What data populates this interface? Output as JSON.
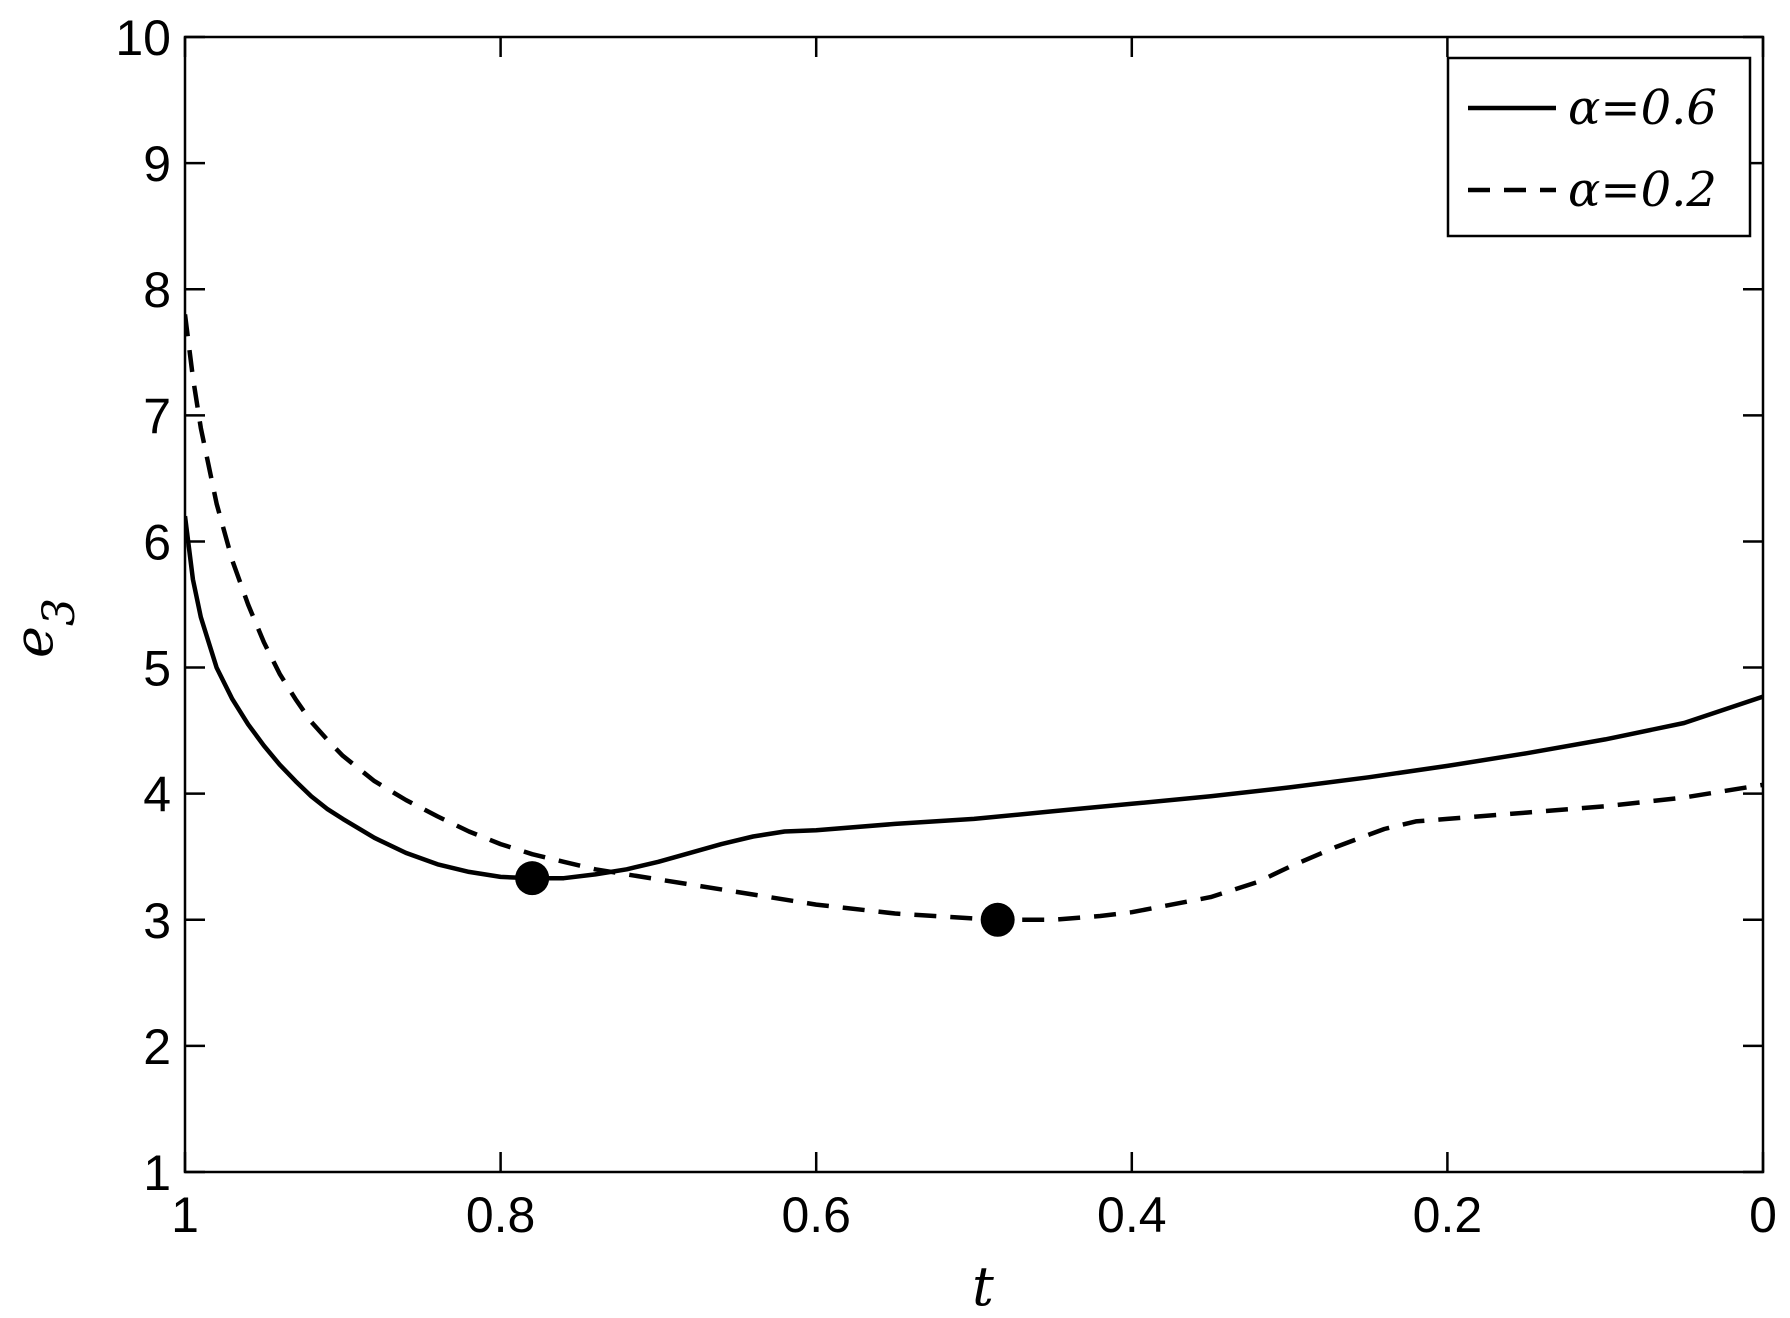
{
  "chart_data": {
    "type": "line",
    "title": "",
    "xlabel": "t",
    "ylabel": "e_3",
    "ylabel_main": "e",
    "ylabel_sub": "3",
    "xlim": [
      1,
      0
    ],
    "ylim": [
      1,
      10
    ],
    "x_reversed": true,
    "grid": false,
    "legend_position": "top-right",
    "x_ticks": [
      1,
      0.8,
      0.6,
      0.4,
      0.2,
      0
    ],
    "x_tick_labels": [
      "1",
      "0.8",
      "0.6",
      "0.4",
      "0.2",
      "0"
    ],
    "y_ticks": [
      1,
      2,
      3,
      4,
      5,
      6,
      7,
      8,
      9,
      10
    ],
    "y_tick_labels": [
      "1",
      "2",
      "3",
      "4",
      "5",
      "6",
      "7",
      "8",
      "9",
      "10"
    ],
    "series": [
      {
        "name": "α=0.6",
        "style": "solid",
        "color": "#000000",
        "x": [
          1.0,
          0.995,
          0.99,
          0.98,
          0.97,
          0.96,
          0.95,
          0.94,
          0.93,
          0.92,
          0.91,
          0.9,
          0.88,
          0.86,
          0.84,
          0.82,
          0.8,
          0.78,
          0.76,
          0.74,
          0.72,
          0.7,
          0.68,
          0.66,
          0.64,
          0.62,
          0.6,
          0.55,
          0.5,
          0.45,
          0.4,
          0.35,
          0.3,
          0.25,
          0.2,
          0.15,
          0.1,
          0.05,
          0.0
        ],
        "y": [
          6.2,
          5.7,
          5.4,
          5.0,
          4.75,
          4.55,
          4.38,
          4.23,
          4.1,
          3.98,
          3.88,
          3.8,
          3.65,
          3.53,
          3.44,
          3.38,
          3.34,
          3.33,
          3.33,
          3.36,
          3.4,
          3.46,
          3.53,
          3.6,
          3.66,
          3.7,
          3.71,
          3.76,
          3.8,
          3.86,
          3.92,
          3.98,
          4.05,
          4.13,
          4.22,
          4.32,
          4.43,
          4.56,
          4.77
        ]
      },
      {
        "name": "α=0.2",
        "style": "dashed",
        "color": "#000000",
        "x": [
          1.0,
          0.995,
          0.99,
          0.98,
          0.97,
          0.96,
          0.95,
          0.94,
          0.93,
          0.92,
          0.91,
          0.9,
          0.88,
          0.86,
          0.84,
          0.82,
          0.8,
          0.78,
          0.76,
          0.74,
          0.72,
          0.7,
          0.65,
          0.6,
          0.55,
          0.5,
          0.48,
          0.45,
          0.42,
          0.4,
          0.35,
          0.32,
          0.3,
          0.27,
          0.24,
          0.22,
          0.2,
          0.15,
          0.1,
          0.05,
          0.0
        ],
        "y": [
          7.8,
          7.3,
          6.9,
          6.3,
          5.85,
          5.5,
          5.2,
          4.95,
          4.75,
          4.57,
          4.43,
          4.3,
          4.1,
          3.95,
          3.82,
          3.7,
          3.6,
          3.52,
          3.46,
          3.4,
          3.36,
          3.32,
          3.22,
          3.12,
          3.05,
          3.01,
          3.0,
          3.0,
          3.03,
          3.06,
          3.18,
          3.3,
          3.42,
          3.58,
          3.72,
          3.78,
          3.8,
          3.85,
          3.9,
          3.97,
          4.07
        ]
      }
    ],
    "markers": [
      {
        "series": "α=0.6",
        "x": 0.78,
        "y": 3.33
      },
      {
        "series": "α=0.2",
        "x": 0.485,
        "y": 3.0
      }
    ]
  }
}
